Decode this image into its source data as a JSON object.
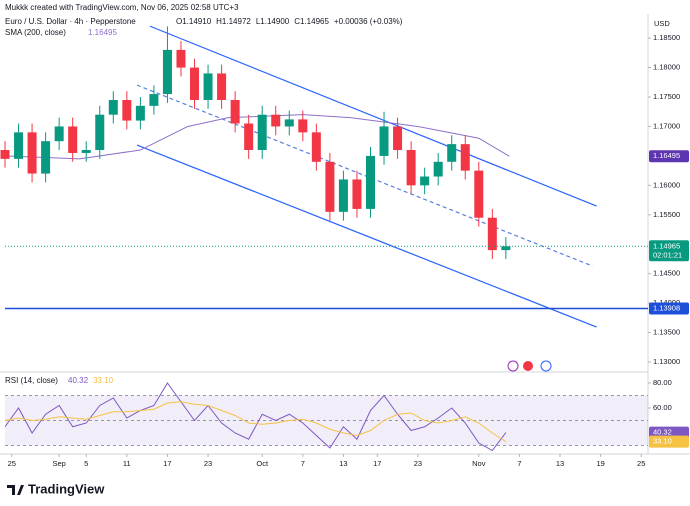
{
  "header": {
    "credit": "Mukkk created with TradingView.com, Nov 06, 2025 02:58 UTC+3",
    "symbol": "Euro / U.S. Dollar · 4h · Pepperstone",
    "ohlc": [
      "O1.14910",
      "H1.14972",
      "L1.14900",
      "C1.14965",
      "+0.00036 (+0.03%)"
    ],
    "currency": "USD",
    "countdown": "02:01:21"
  },
  "footer": {
    "brand": "TradingView"
  },
  "chart_data": [
    {
      "type": "candlestick",
      "up_color": "#089981",
      "down_color": "#f23645",
      "x": [
        -1,
        1,
        3,
        5,
        7,
        9,
        11,
        13,
        15,
        17,
        19,
        21,
        23,
        25,
        27,
        29,
        31,
        33,
        35,
        37,
        39,
        41,
        43,
        45,
        47,
        49,
        51,
        53,
        55,
        57,
        59,
        61,
        63,
        65,
        67,
        69,
        71,
        73
      ],
      "open": [
        1.166,
        1.1645,
        1.169,
        1.162,
        1.1675,
        1.17,
        1.1655,
        1.166,
        1.172,
        1.1745,
        1.171,
        1.1735,
        1.1755,
        1.183,
        1.18,
        1.1745,
        1.179,
        1.1745,
        1.1705,
        1.166,
        1.172,
        1.17,
        1.1712,
        1.169,
        1.164,
        1.1555,
        1.161,
        1.156,
        1.165,
        1.17,
        1.166,
        1.16,
        1.1615,
        1.164,
        1.167,
        1.1625,
        1.1545,
        1.149
      ],
      "high": [
        1.1675,
        1.1705,
        1.1705,
        1.169,
        1.1715,
        1.1715,
        1.1675,
        1.1735,
        1.176,
        1.176,
        1.175,
        1.177,
        1.187,
        1.1845,
        1.1815,
        1.1805,
        1.1805,
        1.176,
        1.172,
        1.1735,
        1.1735,
        1.1727,
        1.1727,
        1.1705,
        1.1655,
        1.1625,
        1.1625,
        1.1665,
        1.1725,
        1.1715,
        1.1675,
        1.163,
        1.1655,
        1.1685,
        1.1685,
        1.164,
        1.156,
        1.1512
      ],
      "low": [
        1.163,
        1.163,
        1.1605,
        1.1605,
        1.166,
        1.164,
        1.164,
        1.1645,
        1.1705,
        1.1695,
        1.1695,
        1.172,
        1.174,
        1.1785,
        1.173,
        1.173,
        1.173,
        1.169,
        1.1645,
        1.1645,
        1.1685,
        1.1685,
        1.1675,
        1.1625,
        1.154,
        1.154,
        1.1545,
        1.1545,
        1.1635,
        1.1645,
        1.1585,
        1.1585,
        1.16,
        1.1625,
        1.161,
        1.153,
        1.1475,
        1.1475
      ],
      "close": [
        1.1645,
        1.169,
        1.162,
        1.1675,
        1.17,
        1.1655,
        1.166,
        1.172,
        1.1745,
        1.171,
        1.1735,
        1.1755,
        1.183,
        1.18,
        1.1745,
        1.179,
        1.1745,
        1.1705,
        1.166,
        1.172,
        1.17,
        1.1712,
        1.169,
        1.164,
        1.1555,
        1.161,
        1.156,
        1.165,
        1.17,
        1.166,
        1.16,
        1.1615,
        1.164,
        1.167,
        1.1625,
        1.1545,
        1.149,
        1.14965
      ],
      "overlays": [
        {
          "name": "SMA (200, close)",
          "color": "#8e6fc9",
          "x": [
            -1,
            10,
            19,
            26,
            32,
            43,
            50,
            60,
            69,
            73.5
          ],
          "values": [
            1.165,
            1.1645,
            1.166,
            1.17,
            1.1715,
            1.172,
            1.1715,
            1.17,
            1.168,
            1.16495
          ]
        }
      ],
      "trendlines": [
        {
          "color": "#2962ff",
          "dashed": false,
          "x": [
            20.4,
            86.4
          ],
          "values": [
            1.18704,
            1.15648
          ]
        },
        {
          "color": "#2962ff",
          "dashed": false,
          "x": [
            18.5,
            86.4
          ],
          "values": [
            1.16684,
            1.13594
          ]
        },
        {
          "color": "#5b7fe0",
          "dashed": true,
          "x": [
            18.5,
            85.8
          ],
          "values": [
            1.17702,
            1.1463
          ]
        }
      ],
      "hlines": [
        {
          "value": 1.13908,
          "color": "#1e4fd8"
        }
      ],
      "xlim": [
        -1,
        94
      ],
      "ylim": [
        1.1283,
        1.1891
      ],
      "yticks": [
        {
          "value": 1.185,
          "label": "1.18500"
        },
        {
          "value": 1.18,
          "label": "1.18000"
        },
        {
          "value": 1.175,
          "label": "1.17500"
        },
        {
          "value": 1.17,
          "label": "1.17000"
        },
        {
          "value": 1.16,
          "label": "1.16000"
        },
        {
          "value": 1.155,
          "label": "1.15500"
        },
        {
          "value": 1.145,
          "label": "1.14500"
        },
        {
          "value": 1.14,
          "label": "1.14000"
        },
        {
          "value": 1.135,
          "label": "1.13500"
        },
        {
          "value": 1.13,
          "label": "1.13000"
        }
      ],
      "xticks": [
        {
          "value": 0,
          "label": "25"
        },
        {
          "value": 7,
          "label": "Sep"
        },
        {
          "value": 11,
          "label": "5"
        },
        {
          "value": 17,
          "label": "11"
        },
        {
          "value": 23,
          "label": "17"
        },
        {
          "value": 29,
          "label": "23"
        },
        {
          "value": 37,
          "label": "Oct"
        },
        {
          "value": 43,
          "label": "7"
        },
        {
          "value": 49,
          "label": "13"
        },
        {
          "value": 54,
          "label": "17"
        },
        {
          "value": 60,
          "label": "23"
        },
        {
          "value": 69,
          "label": "Nov"
        },
        {
          "value": 75,
          "label": "7"
        },
        {
          "value": 81,
          "label": "13"
        },
        {
          "value": 87,
          "label": "19"
        },
        {
          "value": 93,
          "label": "25"
        }
      ]
    },
    {
      "type": "line",
      "title": "RSI (14, close)",
      "x": [
        -1,
        1,
        3,
        5,
        7,
        9,
        11,
        13,
        15,
        17,
        19,
        21,
        23,
        25,
        27,
        29,
        31,
        33,
        35,
        37,
        39,
        41,
        43,
        45,
        47,
        49,
        51,
        53,
        55,
        57,
        59,
        61,
        63,
        65,
        67,
        69,
        71,
        73
      ],
      "series": [
        {
          "color": "#7e57c2",
          "values": [
            45,
            60,
            40,
            55,
            62,
            45,
            48,
            62,
            68,
            52,
            58,
            62,
            80,
            65,
            50,
            62,
            48,
            40,
            35,
            55,
            50,
            55,
            48,
            38,
            28,
            45,
            35,
            58,
            70,
            55,
            42,
            45,
            52,
            60,
            48,
            32,
            26,
            40.32
          ]
        },
        {
          "color": "#f5c242",
          "values": [
            50,
            52,
            50,
            51,
            53,
            52,
            51,
            54,
            57,
            57,
            58,
            59,
            64,
            65,
            63,
            62,
            58,
            54,
            48,
            47,
            48,
            50,
            51,
            48,
            43,
            40,
            38,
            42,
            50,
            55,
            56,
            50,
            48,
            50,
            53,
            48,
            40,
            33.1
          ],
          "value_labels": [
            null,
            null,
            null,
            null,
            null,
            null,
            null,
            null,
            null,
            null,
            null,
            null,
            null,
            null,
            null,
            null,
            null,
            null,
            null,
            null,
            null,
            null,
            null,
            null,
            null,
            null,
            null,
            null,
            null,
            null,
            null,
            null,
            null,
            null,
            null,
            null,
            null,
            "33.10"
          ]
        }
      ],
      "bands": [
        70,
        50,
        30
      ],
      "xlim": [
        -1,
        94
      ],
      "ylim": [
        24.8,
        87.2
      ],
      "yticks": [
        {
          "value": 80,
          "label": "80.00"
        },
        {
          "value": 60,
          "label": "60.00"
        }
      ]
    }
  ]
}
